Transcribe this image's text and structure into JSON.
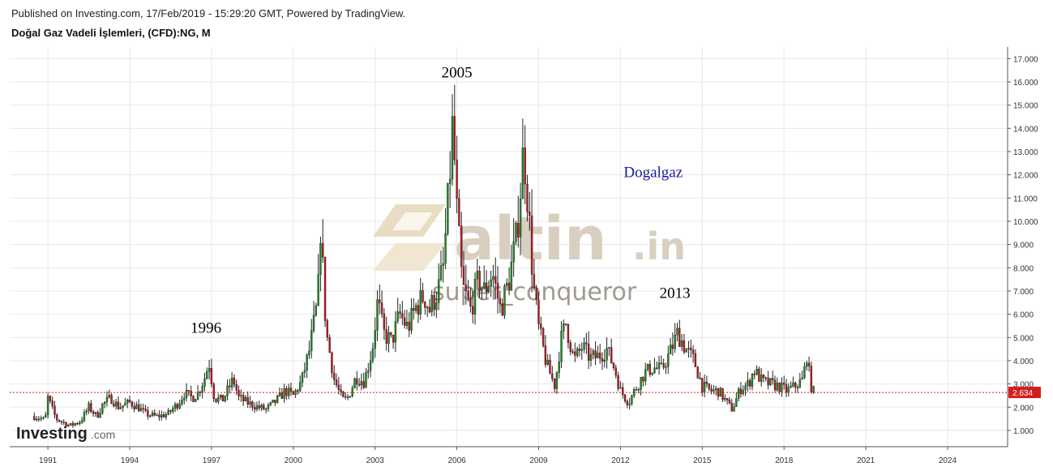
{
  "header": {
    "published": "Published on Investing.com, 17/Feb/2019 - 15:29:20 GMT, Powered by TradingView.",
    "symbol": "Doğal Gaz Vadeli İşlemleri, (CFD):NG, M"
  },
  "watermark": {
    "brand": "altin",
    "brand_suffix": ".in",
    "user": "super_conqueror"
  },
  "branding": {
    "name": "Investing",
    "suffix": ".com"
  },
  "colors": {
    "up": "#1e8c1e",
    "down": "#c0141e",
    "last_price_line": "#d41e1e",
    "grid": "#e8e8e8",
    "annotation_blue": "#1a1a99"
  },
  "chart_data": {
    "type": "candlestick",
    "interval": "monthly",
    "x_range": [
      1989.6,
      2026.2
    ],
    "y_range": [
      0.3,
      17.5
    ],
    "y_ticks": [
      "1.000",
      "2.000",
      "3.000",
      "4.000",
      "5.000",
      "6.000",
      "7.000",
      "8.000",
      "9.000",
      "10.000",
      "11.000",
      "12.000",
      "13.000",
      "14.000",
      "15.000",
      "16.000",
      "17.000"
    ],
    "x_ticks": [
      "1991",
      "1994",
      "1997",
      "2000",
      "2003",
      "2006",
      "2009",
      "2012",
      "2015",
      "2018",
      "2021",
      "2024"
    ],
    "last_price": "2.634",
    "annotations": [
      {
        "text": "1996",
        "x": 1996.8,
        "y": 5.2
      },
      {
        "text": "2005",
        "x": 2006.0,
        "y": 16.2
      },
      {
        "text": "2013",
        "x": 2014.0,
        "y": 6.7
      },
      {
        "text": "Dogalgaz",
        "x": 2013.2,
        "y": 11.9,
        "style": "blue"
      }
    ],
    "close_path": [
      [
        1990.5,
        1.6
      ],
      [
        1990.9,
        1.45
      ],
      [
        1991.0,
        2.4
      ],
      [
        1991.3,
        1.5
      ],
      [
        1991.8,
        1.2
      ],
      [
        1992.2,
        1.4
      ],
      [
        1992.5,
        2.0
      ],
      [
        1992.8,
        1.6
      ],
      [
        1993.0,
        2.1
      ],
      [
        1993.3,
        2.4
      ],
      [
        1993.6,
        2.0
      ],
      [
        1994.0,
        2.2
      ],
      [
        1994.3,
        2.0
      ],
      [
        1994.6,
        1.7
      ],
      [
        1995.0,
        1.6
      ],
      [
        1995.4,
        1.7
      ],
      [
        1995.8,
        2.2
      ],
      [
        1996.0,
        2.6
      ],
      [
        1996.3,
        2.4
      ],
      [
        1996.5,
        2.6
      ],
      [
        1996.8,
        3.4
      ],
      [
        1996.9,
        4.0
      ],
      [
        1997.1,
        2.4
      ],
      [
        1997.4,
        2.3
      ],
      [
        1997.8,
        3.2
      ],
      [
        1998.0,
        2.4
      ],
      [
        1998.3,
        2.2
      ],
      [
        1998.7,
        2.0
      ],
      [
        1999.0,
        1.9
      ],
      [
        1999.4,
        2.3
      ],
      [
        1999.7,
        2.7
      ],
      [
        2000.0,
        2.5
      ],
      [
        2000.3,
        3.1
      ],
      [
        2000.6,
        4.5
      ],
      [
        2000.9,
        6.6
      ],
      [
        2001.0,
        9.8
      ],
      [
        2001.2,
        5.3
      ],
      [
        2001.5,
        3.2
      ],
      [
        2001.8,
        2.3
      ],
      [
        2002.0,
        2.4
      ],
      [
        2002.3,
        3.3
      ],
      [
        2002.6,
        3.1
      ],
      [
        2002.9,
        4.5
      ],
      [
        2003.1,
        6.6
      ],
      [
        2003.3,
        5.2
      ],
      [
        2003.6,
        4.8
      ],
      [
        2003.9,
        6.0
      ],
      [
        2004.2,
        5.4
      ],
      [
        2004.5,
        6.3
      ],
      [
        2004.8,
        6.8
      ],
      [
        2005.0,
        6.2
      ],
      [
        2005.3,
        7.0
      ],
      [
        2005.5,
        8.0
      ],
      [
        2005.7,
        11.2
      ],
      [
        2005.85,
        14.3
      ],
      [
        2006.0,
        10.4
      ],
      [
        2006.2,
        7.2
      ],
      [
        2006.5,
        6.2
      ],
      [
        2006.8,
        7.5
      ],
      [
        2007.0,
        7.0
      ],
      [
        2007.3,
        7.8
      ],
      [
        2007.6,
        6.2
      ],
      [
        2007.9,
        7.4
      ],
      [
        2008.2,
        9.4
      ],
      [
        2008.45,
        13.2
      ],
      [
        2008.6,
        11.0
      ],
      [
        2008.8,
        7.3
      ],
      [
        2009.0,
        5.4
      ],
      [
        2009.3,
        3.8
      ],
      [
        2009.6,
        2.9
      ],
      [
        2009.8,
        4.8
      ],
      [
        2010.0,
        5.6
      ],
      [
        2010.3,
        4.0
      ],
      [
        2010.6,
        4.6
      ],
      [
        2010.9,
        4.1
      ],
      [
        2011.2,
        4.2
      ],
      [
        2011.5,
        4.5
      ],
      [
        2011.8,
        3.6
      ],
      [
        2012.0,
        2.7
      ],
      [
        2012.3,
        2.2
      ],
      [
        2012.6,
        2.9
      ],
      [
        2012.9,
        3.5
      ],
      [
        2013.2,
        3.7
      ],
      [
        2013.5,
        3.6
      ],
      [
        2013.8,
        4.3
      ],
      [
        2014.1,
        5.2
      ],
      [
        2014.4,
        4.5
      ],
      [
        2014.7,
        4.0
      ],
      [
        2015.0,
        2.9
      ],
      [
        2015.3,
        2.7
      ],
      [
        2015.6,
        2.7
      ],
      [
        2015.9,
        2.2
      ],
      [
        2016.1,
        1.9
      ],
      [
        2016.4,
        2.8
      ],
      [
        2016.7,
        3.0
      ],
      [
        2016.9,
        3.6
      ],
      [
        2017.2,
        3.1
      ],
      [
        2017.5,
        3.0
      ],
      [
        2017.8,
        2.9
      ],
      [
        2018.1,
        2.7
      ],
      [
        2018.4,
        2.9
      ],
      [
        2018.7,
        3.2
      ],
      [
        2018.85,
        4.4
      ],
      [
        2018.95,
        3.0
      ],
      [
        2019.1,
        2.634
      ]
    ]
  }
}
